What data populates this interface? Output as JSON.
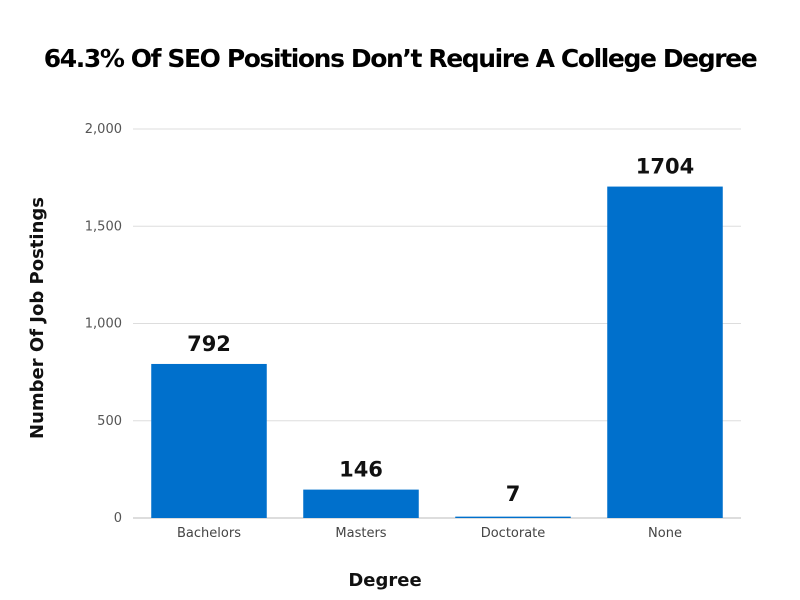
{
  "chart_data": {
    "type": "bar",
    "title": "64.3% Of SEO Positions Don’t Require A College Degree",
    "xlabel": "Degree",
    "ylabel": "Number Of Job Postings",
    "categories": [
      "Bachelors",
      "Masters",
      "Doctorate",
      "None"
    ],
    "values": [
      792,
      146,
      7,
      1704
    ],
    "data_labels": [
      "792",
      "146",
      "7",
      "1704"
    ],
    "ylim": [
      0,
      2000
    ],
    "yticks": [
      0,
      500,
      1000,
      1500,
      2000
    ],
    "ytick_labels": [
      "0",
      "500",
      "1,000",
      "1,500",
      "2,000"
    ],
    "grid": true,
    "legend": "none",
    "bar_color": "#0070CC",
    "grid_color": "#DDDDDD"
  }
}
